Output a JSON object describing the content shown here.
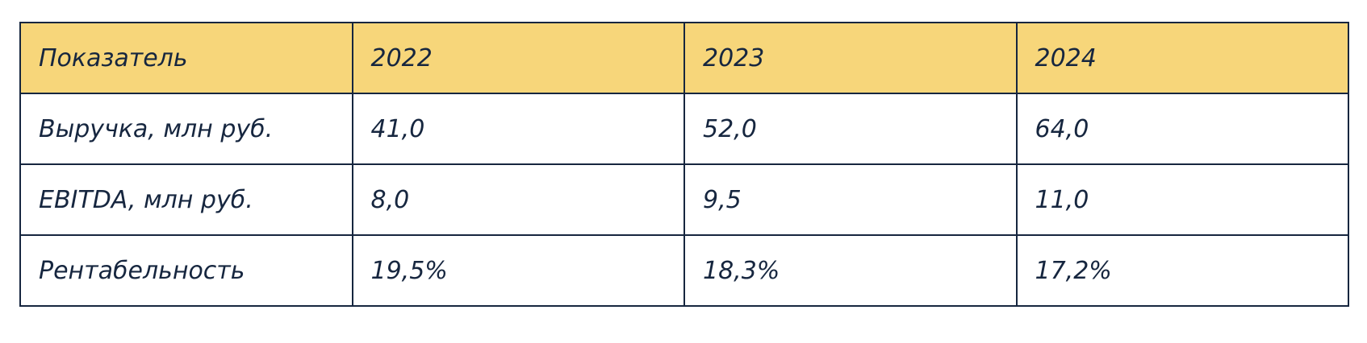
{
  "table": {
    "header": [
      "Показатель",
      "2022",
      "2023",
      "2024"
    ],
    "rows": [
      [
        "Выручка, млн руб.",
        "41,0",
        "52,0",
        "64,0"
      ],
      [
        "EBITDA, млн руб.",
        "8,0",
        "9,5",
        "11,0"
      ],
      [
        "Рентабельность",
        "19,5%",
        "18,3%",
        "17,2%"
      ]
    ]
  }
}
